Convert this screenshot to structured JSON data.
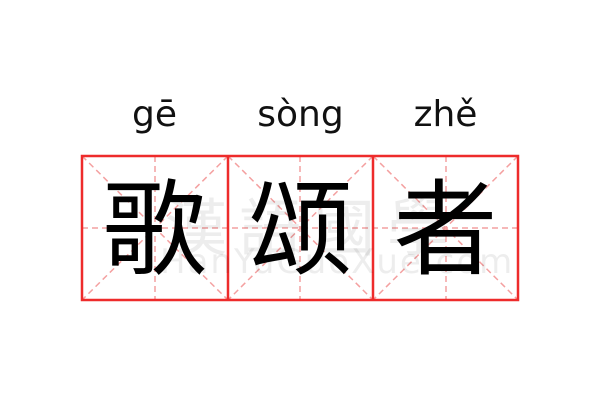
{
  "word": [
    {
      "pinyin": "gē",
      "hanzi": "歌"
    },
    {
      "pinyin": "sòng",
      "hanzi": "颂"
    },
    {
      "pinyin": "zhě",
      "hanzi": "者"
    }
  ],
  "watermark": {
    "chinese": "漢語國學",
    "latin": "HanYuGuoXue.com"
  },
  "colors": {
    "border": "#ee2b2b",
    "guide": "#f4a0a0"
  }
}
